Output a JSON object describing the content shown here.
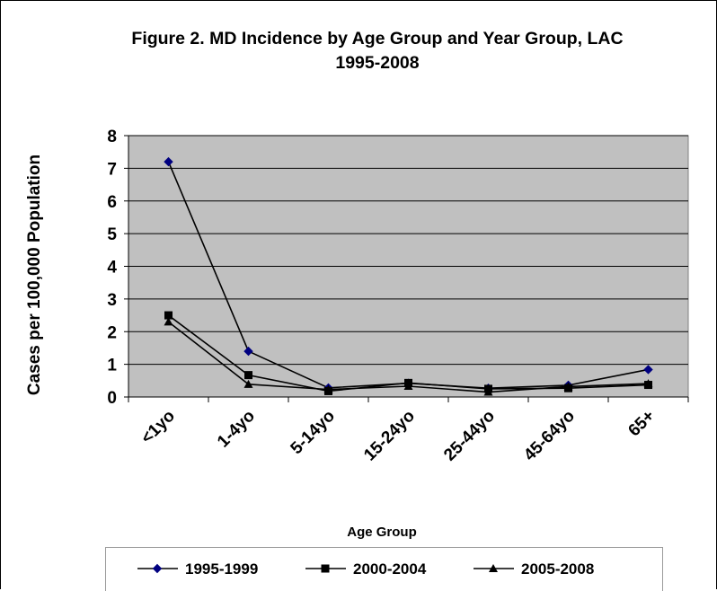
{
  "chart_data": {
    "type": "line",
    "title_line1": "Figure 2. MD Incidence by Age Group and Year Group, LAC",
    "title_line2": "1995-2008",
    "xlabel": "Age Group",
    "ylabel": "Cases per 100,000 Population",
    "categories": [
      "<1yo",
      "1-4yo",
      "5-14yo",
      "15-24yo",
      "25-44yo",
      "45-64yo",
      "65+"
    ],
    "ylim": [
      0,
      8
    ],
    "yticks": [
      "0",
      "1",
      "2",
      "3",
      "4",
      "5",
      "6",
      "7",
      "8"
    ],
    "grid": true,
    "legend_position": "bottom",
    "plot_background": "#c0c0c0",
    "series": [
      {
        "name": "1995-1999",
        "marker": "diamond",
        "color": "#000080",
        "values": [
          7.2,
          1.4,
          0.28,
          0.42,
          0.27,
          0.36,
          0.84
        ]
      },
      {
        "name": "2000-2004",
        "marker": "square",
        "color": "#000000",
        "values": [
          2.5,
          0.67,
          0.18,
          0.43,
          0.25,
          0.27,
          0.37
        ]
      },
      {
        "name": "2005-2008",
        "marker": "triangle",
        "color": "#000000",
        "values": [
          2.3,
          0.39,
          0.23,
          0.33,
          0.15,
          0.32,
          0.41
        ]
      }
    ]
  }
}
